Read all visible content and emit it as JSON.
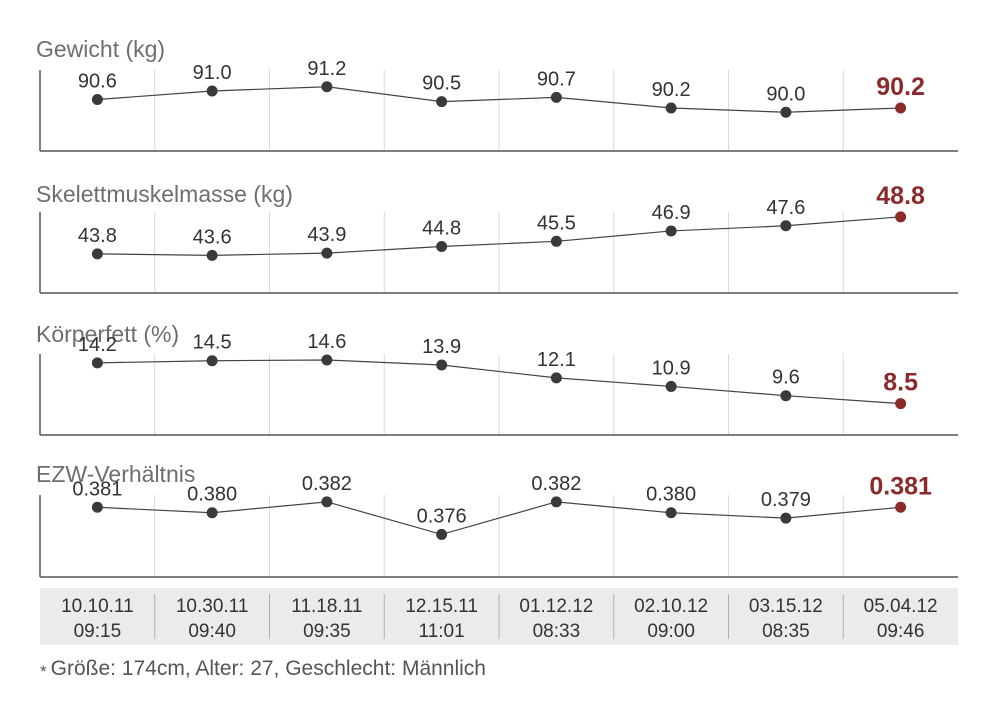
{
  "chart_data": {
    "type": "line",
    "categories": [
      [
        "10.10.11",
        "09:15"
      ],
      [
        "10.30.11",
        "09:40"
      ],
      [
        "11.18.11",
        "09:35"
      ],
      [
        "12.15.11",
        "11:01"
      ],
      [
        "01.12.12",
        "08:33"
      ],
      [
        "02.10.12",
        "09:00"
      ],
      [
        "03.15.12",
        "08:35"
      ],
      [
        "05.04.12",
        "09:46"
      ]
    ],
    "highlight_index": 7,
    "colors": {
      "highlight": "#8b2a2a",
      "line": "#444444",
      "point": "#3a3a3a"
    },
    "series": [
      {
        "name": "Gewicht (kg)",
        "values": [
          90.6,
          91.0,
          91.2,
          90.5,
          90.7,
          90.2,
          90.0,
          90.2
        ],
        "labels": [
          "90.6",
          "91.0",
          "91.2",
          "90.5",
          "90.7",
          "90.2",
          "90.0",
          "90.2"
        ],
        "ylim": [
          88.6,
          91.8
        ]
      },
      {
        "name": "Skelettmuskelmasse (kg)",
        "values": [
          43.8,
          43.6,
          43.9,
          44.8,
          45.5,
          46.9,
          47.6,
          48.8
        ],
        "labels": [
          "43.8",
          "43.6",
          "43.9",
          "44.8",
          "45.5",
          "46.9",
          "47.6",
          "48.8"
        ],
        "ylim": [
          40.0,
          50.0
        ]
      },
      {
        "name": "Körperfett (%)",
        "values": [
          14.2,
          14.5,
          14.6,
          13.9,
          12.1,
          10.9,
          9.6,
          8.5
        ],
        "labels": [
          "14.2",
          "14.5",
          "14.6",
          "13.9",
          "12.1",
          "10.9",
          "9.6",
          "8.5"
        ],
        "ylim": [
          5.5,
          16.0
        ]
      },
      {
        "name": "EZW-Verhältnis",
        "values": [
          0.381,
          0.38,
          0.382,
          0.376,
          0.382,
          0.38,
          0.379,
          0.381
        ],
        "labels": [
          "0.381",
          "0.380",
          "0.382",
          "0.376",
          "0.382",
          "0.380",
          "0.379",
          "0.381"
        ],
        "ylim": [
          0.37,
          0.384
        ]
      }
    ]
  },
  "footnote": {
    "marker": "*",
    "text": "Größe: 174cm, Alter: 27, Geschlecht: Männlich"
  }
}
